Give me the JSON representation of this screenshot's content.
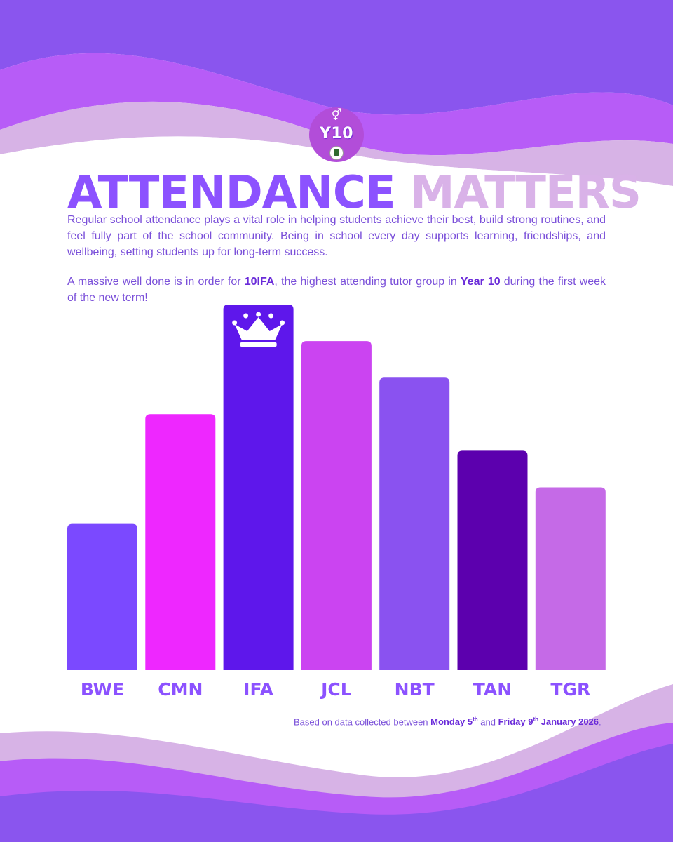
{
  "badge": {
    "glyph": "⚥",
    "label": "Y10"
  },
  "title": {
    "part1": "ATTENDANCE",
    "part2": "MATTERS"
  },
  "intro": "Regular school attendance plays a vital role in helping students achieve their best, build strong routines, and feel fully part of the school community. Being in school every day supports learning, friendships, and wellbeing, setting students up for long-term success.",
  "announcement": {
    "pre": "A massive well done is in order for ",
    "group": "10IFA",
    "mid": ", the highest attending tutor group in ",
    "year": "Year 10",
    "post": " during the first week of the new term!"
  },
  "footnote": {
    "pre": "Based on data collected between ",
    "start_day": "Monday 5",
    "start_sup": "th",
    "and": " and ",
    "end_day": "Friday 9",
    "end_sup": "th",
    "end_rest": " January 2026",
    "post": "."
  },
  "colors": {
    "purple": "#8c52ff",
    "lilac": "#d9b2e8",
    "violet": "#c05cff",
    "label": "#7a4fd9"
  },
  "chart_data": {
    "type": "bar",
    "title": "",
    "xlabel": "",
    "ylabel": "",
    "categories": [
      "BWE",
      "CMN",
      "IFA",
      "JCL",
      "NBT",
      "TAN",
      "TGR"
    ],
    "values": [
      40,
      70,
      100,
      90,
      80,
      60,
      50
    ],
    "ylim": [
      0,
      100
    ],
    "colors": [
      "#7b49ff",
      "#ee27ff",
      "#5e17eb",
      "#cb44f1",
      "#8a52f0",
      "#5c00ae",
      "#c56ae7"
    ],
    "highlight": {
      "category": "IFA",
      "icon": "crown-icon"
    },
    "axes": false,
    "grid": false
  }
}
